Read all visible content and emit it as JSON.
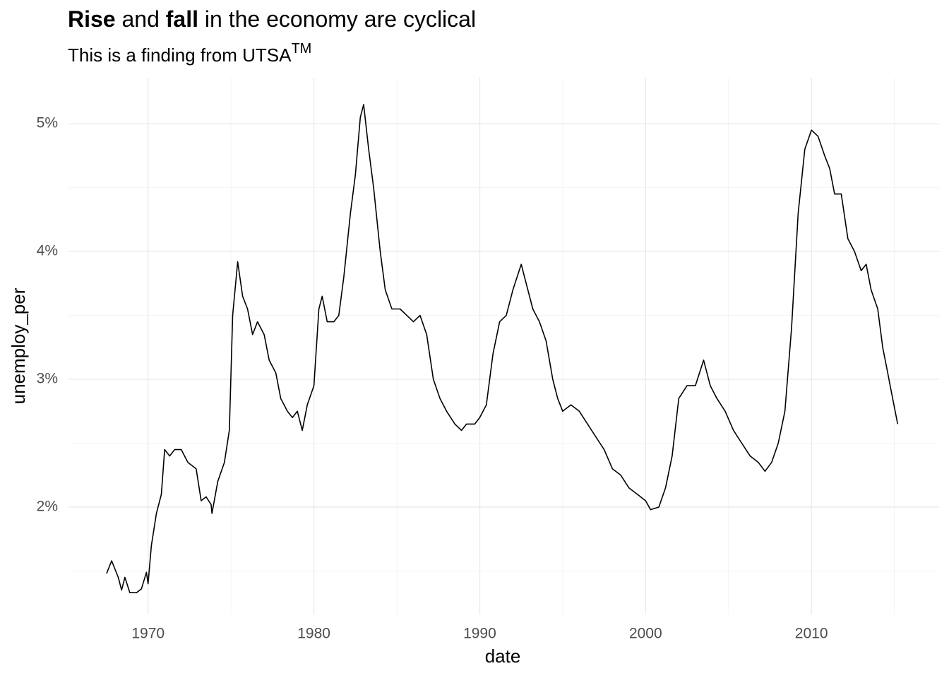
{
  "chart_data": {
    "type": "line",
    "title": [
      "Rise",
      "and",
      "fall",
      "in the economy are cyclical"
    ],
    "subtitle": [
      "This is a finding from UTSA",
      "TM"
    ],
    "x_label": "date",
    "y_label": "unemploy_per",
    "color": "#000000",
    "grid": true,
    "xlim": [
      1965.2,
      2017.7
    ],
    "ylim": [
      1.16,
      5.36
    ],
    "xticks": [
      1970,
      1980,
      1990,
      2000,
      2010
    ],
    "x_minor_grid": [
      1975,
      1985,
      1995,
      2005,
      2015
    ],
    "yticks": [
      {
        "value": 2,
        "label": "2%"
      },
      {
        "value": 3,
        "label": "3%"
      },
      {
        "value": 4,
        "label": "4%"
      },
      {
        "value": 5,
        "label": "5%"
      }
    ],
    "y_minor_grid": [
      1.5,
      2.5,
      3.5,
      4.5
    ],
    "x": [
      1967.5,
      1967.8,
      1968.2,
      1968.4,
      1968.6,
      1968.9,
      1969.3,
      1969.6,
      1969.9,
      1970.0,
      1970.2,
      1970.5,
      1970.8,
      1971.0,
      1971.3,
      1971.6,
      1972.0,
      1972.4,
      1972.9,
      1973.2,
      1973.5,
      1973.8,
      1973.85,
      1974.2,
      1974.6,
      1974.9,
      1975.1,
      1975.4,
      1975.7,
      1976.0,
      1976.3,
      1976.6,
      1977.0,
      1977.3,
      1977.7,
      1978.0,
      1978.4,
      1978.7,
      1979.0,
      1979.3,
      1979.6,
      1980.0,
      1980.3,
      1980.5,
      1980.8,
      1981.2,
      1981.5,
      1981.8,
      1982.2,
      1982.5,
      1982.8,
      1983.0,
      1983.3,
      1983.6,
      1984.0,
      1984.3,
      1984.7,
      1985.2,
      1985.6,
      1986.0,
      1986.4,
      1986.8,
      1987.2,
      1987.6,
      1988.0,
      1988.5,
      1988.9,
      1989.2,
      1989.7,
      1990.0,
      1990.4,
      1990.8,
      1991.2,
      1991.6,
      1992.0,
      1992.5,
      1992.8,
      1993.2,
      1993.6,
      1994.0,
      1994.4,
      1994.7,
      1995.0,
      1995.5,
      1996.0,
      1996.5,
      1997.0,
      1997.5,
      1998.0,
      1998.5,
      1999.0,
      1999.5,
      2000.0,
      2000.3,
      2000.8,
      2001.2,
      2001.6,
      2002.0,
      2002.5,
      2003.0,
      2003.5,
      2003.9,
      2004.3,
      2004.8,
      2005.3,
      2005.8,
      2006.3,
      2006.8,
      2007.2,
      2007.6,
      2008.0,
      2008.4,
      2008.8,
      2009.2,
      2009.6,
      2010.0,
      2010.4,
      2010.8,
      2011.1,
      2011.4,
      2011.8,
      2012.2,
      2012.6,
      2013.0,
      2013.3,
      2013.6,
      2014.0,
      2014.3,
      2014.6,
      2014.9,
      2015.2
    ],
    "values": [
      1.48,
      1.58,
      1.45,
      1.35,
      1.45,
      1.33,
      1.33,
      1.36,
      1.49,
      1.4,
      1.7,
      1.95,
      2.1,
      2.45,
      2.4,
      2.45,
      2.45,
      2.35,
      2.3,
      2.05,
      2.08,
      2.02,
      1.95,
      2.2,
      2.35,
      2.6,
      3.5,
      3.92,
      3.65,
      3.55,
      3.35,
      3.45,
      3.35,
      3.15,
      3.05,
      2.85,
      2.75,
      2.7,
      2.75,
      2.6,
      2.8,
      2.95,
      3.55,
      3.65,
      3.45,
      3.45,
      3.5,
      3.8,
      4.3,
      4.6,
      5.05,
      5.15,
      4.8,
      4.5,
      4.0,
      3.7,
      3.55,
      3.55,
      3.5,
      3.45,
      3.5,
      3.35,
      3.0,
      2.85,
      2.75,
      2.65,
      2.6,
      2.65,
      2.65,
      2.7,
      2.8,
      3.2,
      3.45,
      3.5,
      3.7,
      3.9,
      3.75,
      3.55,
      3.45,
      3.3,
      3.0,
      2.85,
      2.75,
      2.8,
      2.75,
      2.65,
      2.55,
      2.45,
      2.3,
      2.25,
      2.15,
      2.1,
      2.05,
      1.98,
      2.0,
      2.15,
      2.4,
      2.85,
      2.95,
      2.95,
      3.15,
      2.95,
      2.85,
      2.75,
      2.6,
      2.5,
      2.4,
      2.35,
      2.28,
      2.35,
      2.5,
      2.75,
      3.4,
      4.3,
      4.8,
      4.95,
      4.9,
      4.75,
      4.65,
      4.45,
      4.45,
      4.1,
      4.0,
      3.85,
      3.9,
      3.7,
      3.55,
      3.25,
      3.05,
      2.85,
      2.65
    ]
  }
}
